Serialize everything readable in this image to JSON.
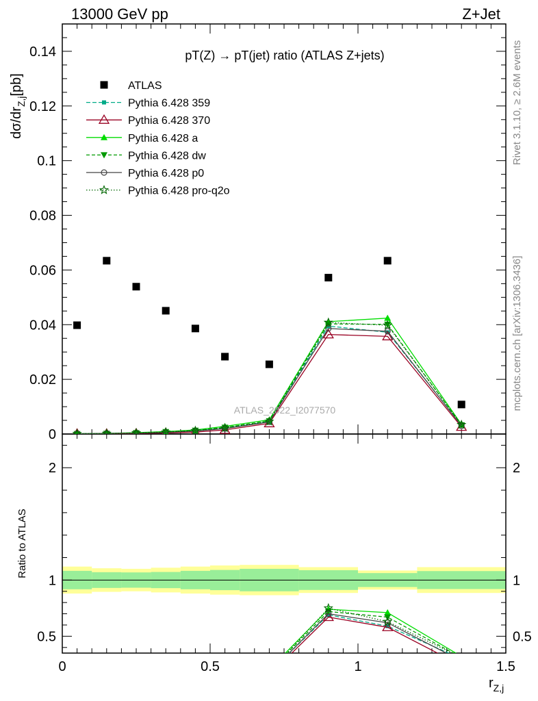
{
  "header": {
    "left": "13000 GeV pp",
    "right": "Z+Jet"
  },
  "side_labels": {
    "rivet": "Rivet 3.1.10, ≥ 2.6M events",
    "mcplots": "mcplots.cern.ch [arXiv:1306.3436]"
  },
  "watermark": "ATLAS_2022_I2077570",
  "chart_data": {
    "type": "scatter",
    "title": "pT(Z) → pT(jet) ratio (ATLAS Z+jets)",
    "ylabel_main": "dσ/dr",
    "ylabel_main_sub": "Z,j",
    "ylabel_main_unit": "[pb]",
    "ylabel_ratio": "Ratio to ATLAS",
    "xlabel": "r",
    "xlabel_sub": "Z,j",
    "xlim": [
      0,
      1.5
    ],
    "ylim_main": [
      0,
      0.15
    ],
    "ylim_ratio": [
      0.35,
      2.3
    ],
    "x_ticks": [
      "0",
      "0.5",
      "1",
      "1.5"
    ],
    "y_ticks_main": [
      "0",
      "0.02",
      "0.04",
      "0.06",
      "0.08",
      "0.1",
      "0.12",
      "0.14"
    ],
    "y_ticks_ratio": [
      "0.5",
      "1",
      "2"
    ],
    "legend_position": "top-left",
    "bin_edges": [
      0.0,
      0.1,
      0.2,
      0.3,
      0.4,
      0.5,
      0.6,
      0.8,
      1.0,
      1.2,
      1.5
    ],
    "x": [
      0.05,
      0.15,
      0.25,
      0.35,
      0.45,
      0.55,
      0.7,
      0.9,
      1.1,
      1.35
    ],
    "data": {
      "name": "ATLAS",
      "values": [
        0.0398,
        0.0634,
        0.0539,
        0.0451,
        0.0386,
        0.0283,
        0.0255,
        0.0572,
        0.0634,
        0.0108
      ],
      "band_inner": [
        0.082,
        0.07,
        0.068,
        0.072,
        0.082,
        0.09,
        0.1,
        0.088,
        0.062,
        0.08
      ],
      "band_outer": [
        0.12,
        0.105,
        0.1,
        0.11,
        0.12,
        0.13,
        0.135,
        0.115,
        0.085,
        0.115
      ]
    },
    "series": [
      {
        "name": "Pythia 6.428 359",
        "color": "#00aa88",
        "dash": "6,3",
        "marker": "square-small",
        "values": [
          0.0001,
          0.0002,
          0.0004,
          0.0007,
          0.0012,
          0.0022,
          0.0045,
          0.0395,
          0.0372,
          0.0032
        ],
        "ratio": [
          0.003,
          0.003,
          0.007,
          0.016,
          0.031,
          0.078,
          0.176,
          0.69,
          0.59,
          0.3
        ]
      },
      {
        "name": "Pythia 6.428 370",
        "color": "#990022",
        "dash": "",
        "marker": "triangle-open",
        "values": [
          0.0001,
          0.0001,
          0.0002,
          0.0004,
          0.0007,
          0.0015,
          0.0039,
          0.0364,
          0.0357,
          0.0026
        ],
        "ratio": [
          0.003,
          0.002,
          0.004,
          0.009,
          0.018,
          0.053,
          0.153,
          0.67,
          0.58,
          0.24
        ]
      },
      {
        "name": "Pythia 6.428 a",
        "color": "#00dd00",
        "dash": "",
        "marker": "triangle-filled",
        "values": [
          0.0001,
          0.0002,
          0.0005,
          0.0009,
          0.0015,
          0.0028,
          0.0052,
          0.0411,
          0.0424,
          0.0035
        ],
        "ratio": [
          0.003,
          0.003,
          0.009,
          0.02,
          0.039,
          0.099,
          0.204,
          0.74,
          0.71,
          0.32
        ]
      },
      {
        "name": "Pythia 6.428 dw",
        "color": "#009900",
        "dash": "5,3",
        "marker": "triangle-down",
        "values": [
          0.0001,
          0.0002,
          0.0004,
          0.0008,
          0.0013,
          0.0024,
          0.0048,
          0.0403,
          0.0401,
          0.0033
        ],
        "ratio": [
          0.003,
          0.003,
          0.007,
          0.018,
          0.034,
          0.085,
          0.188,
          0.72,
          0.67,
          0.31
        ]
      },
      {
        "name": "Pythia 6.428 p0",
        "color": "#444444",
        "dash": "",
        "marker": "circle-open",
        "values": [
          0.0001,
          0.0002,
          0.0003,
          0.0006,
          0.0011,
          0.002,
          0.0044,
          0.0386,
          0.0376,
          0.003
        ],
        "ratio": [
          0.003,
          0.003,
          0.006,
          0.013,
          0.028,
          0.071,
          0.173,
          0.7,
          0.62,
          0.28
        ]
      },
      {
        "name": "Pythia 6.428 pro-q2o",
        "color": "#006600",
        "dash": "1.5,2.5",
        "marker": "star-open",
        "values": [
          0.0001,
          0.0002,
          0.0004,
          0.0007,
          0.0012,
          0.0022,
          0.0046,
          0.0408,
          0.0398,
          0.0034
        ],
        "ratio": [
          0.003,
          0.003,
          0.007,
          0.016,
          0.031,
          0.078,
          0.18,
          0.75,
          0.63,
          0.31
        ]
      }
    ]
  }
}
